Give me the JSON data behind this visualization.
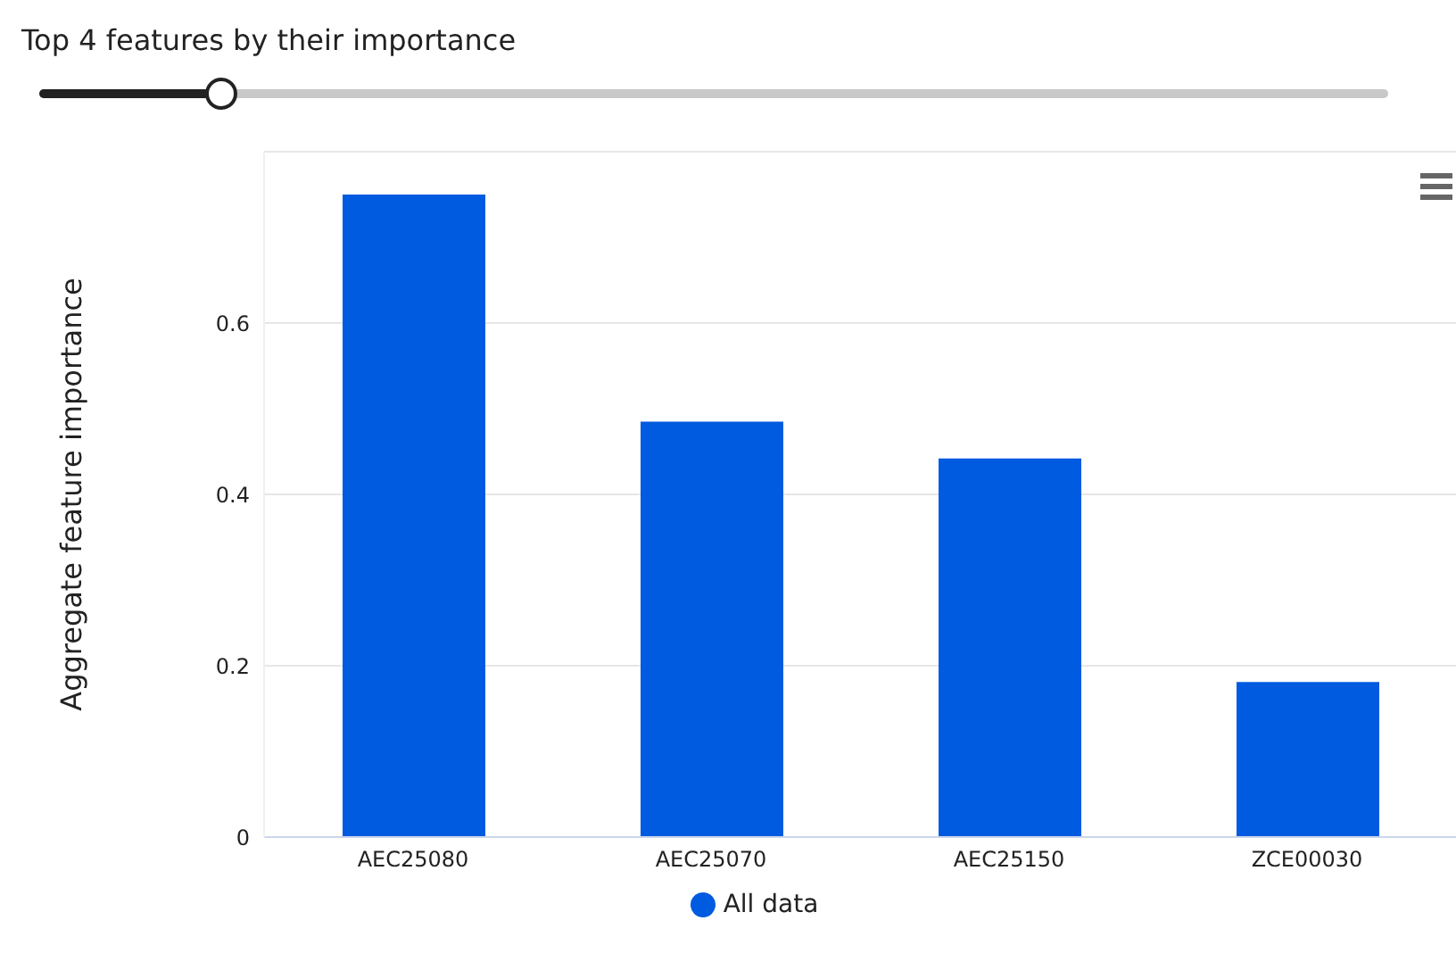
{
  "chart_data": {
    "type": "bar",
    "title": "Top 4 features by their importance",
    "ylabel": "Aggregate feature importance",
    "categories": [
      "AEC25080",
      "AEC25070",
      "AEC25150",
      "ZCE00030"
    ],
    "series": [
      {
        "name": "All data",
        "color": "#005be0",
        "values": [
          0.75,
          0.485,
          0.442,
          0.181
        ]
      }
    ],
    "ylim": [
      0,
      0.8
    ],
    "yticks": [
      0,
      0.2,
      0.4,
      0.6
    ],
    "grid": "y",
    "legend": "bottom"
  }
}
